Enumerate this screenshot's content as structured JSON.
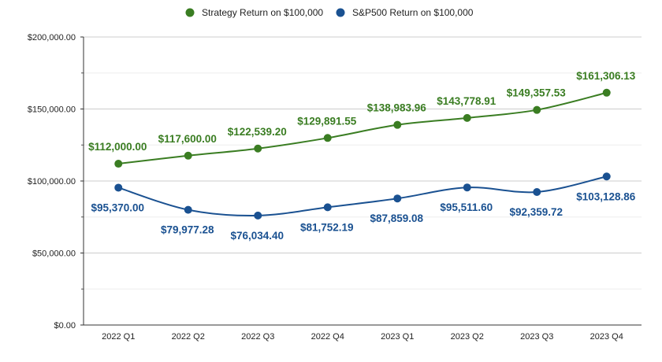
{
  "chart_data": {
    "type": "line",
    "title": "",
    "xlabel": "",
    "ylabel": "",
    "categories": [
      "2022 Q1",
      "2022 Q2",
      "2022 Q3",
      "2022 Q4",
      "2023 Q1",
      "2023 Q2",
      "2023 Q3",
      "2023 Q4"
    ],
    "ylim": [
      0,
      200000
    ],
    "yticks": [
      0,
      50000,
      100000,
      150000,
      200000
    ],
    "ytick_labels": [
      "$0.00",
      "$50,000.00",
      "$100,000.00",
      "$150,000.00",
      "$200,000.00"
    ],
    "grid": true,
    "legend_position": "top",
    "series": [
      {
        "name": "Strategy Return on $100,000",
        "color": "#3a7d22",
        "values": [
          112000.0,
          117600.0,
          122539.2,
          129891.55,
          138983.96,
          143778.91,
          149357.53,
          161306.13
        ],
        "labels": [
          "$112,000.00",
          "$117,600.00",
          "$122,539.20",
          "$129,891.55",
          "$138,983.96",
          "$143,778.91",
          "$149,357.53",
          "$161,306.13"
        ],
        "label_position": "above"
      },
      {
        "name": "S&P500 Return on $100,000",
        "color": "#1a5191",
        "values": [
          95370.0,
          79977.28,
          76034.4,
          81752.19,
          87859.08,
          95511.6,
          92359.72,
          103128.86
        ],
        "labels": [
          "$95,370.00",
          "$79,977.28",
          "$76,034.40",
          "$81,752.19",
          "$87,859.08",
          "$95,511.60",
          "$92,359.72",
          "$103,128.86"
        ],
        "label_position": "below"
      }
    ]
  }
}
